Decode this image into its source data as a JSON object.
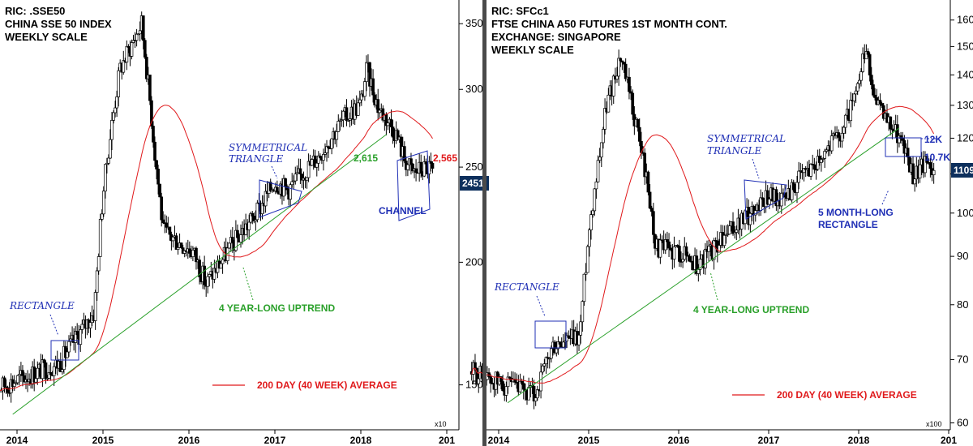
{
  "chart_data": [
    {
      "type": "candlestick",
      "header": [
        "RIC: .SSE50",
        "CHINA SSE 50 INDEX",
        "WEEKLY SCALE"
      ],
      "y_ticks": [
        "150",
        "200",
        "250",
        "300",
        "350"
      ],
      "y_unit": "x10",
      "x_ticks": [
        "2014",
        "2015",
        "2016",
        "2017",
        "2018",
        "201"
      ],
      "ylim": [
        1350,
        3700
      ],
      "log_scale": true,
      "last_price": "2451",
      "annotations": {
        "rectangle": "RECTANGLE",
        "triangle": [
          "SYMMETRICAL",
          "TRIANGLE"
        ],
        "uptrend": "4 YEAR-LONG UPTREND",
        "channel": "CHANNEL",
        "level_green": "2,615",
        "level_red": "2,565"
      },
      "legend": "200 DAY (40 WEEK) AVERAGE",
      "key_points": [
        [
          2013.7,
          1480
        ],
        [
          2014.5,
          1580
        ],
        [
          2014.9,
          1780
        ],
        [
          2015.0,
          2350
        ],
        [
          2015.2,
          3150
        ],
        [
          2015.45,
          3500
        ],
        [
          2015.6,
          2600
        ],
        [
          2015.7,
          2150
        ],
        [
          2016.05,
          2050
        ],
        [
          2016.2,
          1900
        ],
        [
          2016.5,
          2080
        ],
        [
          2016.8,
          2250
        ],
        [
          2017.0,
          2420
        ],
        [
          2017.15,
          2370
        ],
        [
          2017.5,
          2560
        ],
        [
          2017.8,
          2800
        ],
        [
          2018.0,
          2900
        ],
        [
          2018.07,
          3150
        ],
        [
          2018.2,
          2880
        ],
        [
          2018.4,
          2720
        ],
        [
          2018.5,
          2560
        ],
        [
          2018.6,
          2470
        ],
        [
          2018.8,
          2500
        ],
        [
          2018.85,
          2451
        ]
      ]
    },
    {
      "type": "candlestick",
      "header": [
        "RIC: SFCc1",
        "FTSE CHINA A50 FUTURES 1ST MONTH CONT.",
        "EXCHANGE: SINGAPORE",
        "WEEKLY SCALE"
      ],
      "y_ticks": [
        "60",
        "70",
        "80",
        "90",
        "100",
        "110",
        "120",
        "130",
        "140",
        "150",
        "160"
      ],
      "y_unit": "x100",
      "x_ticks": [
        "2014",
        "2015",
        "2016",
        "2017",
        "2018",
        "201"
      ],
      "ylim": [
        5900,
        16800
      ],
      "log_scale": true,
      "last_price": "1109",
      "annotations": {
        "rectangle": "RECTANGLE",
        "triangle": [
          "SYMMETRICAL",
          "TRIANGLE"
        ],
        "uptrend": "4 YEAR-LONG UPTREND",
        "rect5": [
          "5 MONTH-LONG",
          "RECTANGLE"
        ],
        "level_high": "12K",
        "level_low": "10.7K"
      },
      "legend": "200 DAY (40 WEEK) AVERAGE",
      "key_points": [
        [
          2013.7,
          6800
        ],
        [
          2014.2,
          6500
        ],
        [
          2014.4,
          6400
        ],
        [
          2014.6,
          7200
        ],
        [
          2014.9,
          7400
        ],
        [
          2015.0,
          9500
        ],
        [
          2015.2,
          13000
        ],
        [
          2015.35,
          14600
        ],
        [
          2015.6,
          11500
        ],
        [
          2015.75,
          9200
        ],
        [
          2016.05,
          9100
        ],
        [
          2016.2,
          8800
        ],
        [
          2016.5,
          9400
        ],
        [
          2016.8,
          10000
        ],
        [
          2017.0,
          10500
        ],
        [
          2017.15,
          10300
        ],
        [
          2017.5,
          11300
        ],
        [
          2017.8,
          12200
        ],
        [
          2018.0,
          13500
        ],
        [
          2018.07,
          14900
        ],
        [
          2018.2,
          13000
        ],
        [
          2018.45,
          12100
        ],
        [
          2018.6,
          11000
        ],
        [
          2018.8,
          11300
        ],
        [
          2018.85,
          11090
        ]
      ]
    }
  ]
}
